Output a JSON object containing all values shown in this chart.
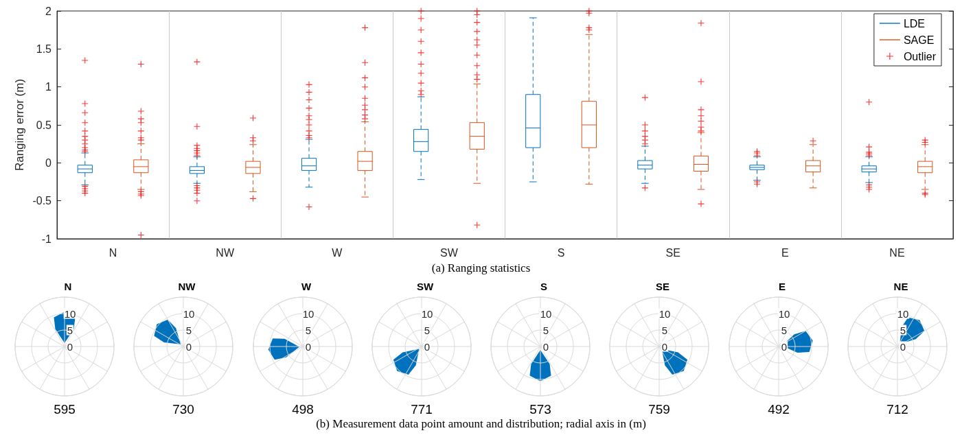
{
  "chart_data": [
    {
      "type": "box",
      "categories": [
        "N",
        "NW",
        "W",
        "SW",
        "S",
        "SE",
        "E",
        "NE"
      ],
      "ylabel": "Ranging error (m)",
      "ylim": [
        -1,
        2
      ],
      "yticks": [
        -1,
        -0.5,
        0,
        0.5,
        1,
        1.5,
        2
      ],
      "grid": "x",
      "legend": "top right",
      "marker": "cross",
      "annotations": [
        "(a) Ranging statistics"
      ],
      "series": [
        {
          "name": "LDE",
          "color": "#0072bd",
          "boxes": [
            {
              "low": -0.29,
              "q1": -0.13,
              "median": -0.08,
              "q3": -0.03,
              "high": 0.13
            },
            {
              "low": -0.27,
              "q1": -0.14,
              "median": -0.1,
              "q3": -0.05,
              "high": 0.08
            },
            {
              "low": -0.32,
              "q1": -0.1,
              "median": -0.04,
              "q3": 0.06,
              "high": 0.31
            },
            {
              "low": -0.22,
              "q1": 0.15,
              "median": 0.28,
              "q3": 0.44,
              "high": 0.87
            },
            {
              "low": -0.25,
              "q1": 0.2,
              "median": 0.46,
              "q3": 0.9,
              "high": 1.91
            },
            {
              "low": -0.27,
              "q1": -0.08,
              "median": -0.03,
              "q3": 0.03,
              "high": 0.22
            },
            {
              "low": -0.23,
              "q1": -0.09,
              "median": -0.06,
              "q3": -0.03,
              "high": 0.08
            },
            {
              "low": -0.26,
              "q1": -0.12,
              "median": -0.08,
              "q3": -0.04,
              "high": 0.08
            }
          ]
        },
        {
          "name": "SAGE",
          "color": "#d95319",
          "boxes": [
            {
              "low": -0.35,
              "q1": -0.13,
              "median": -0.05,
              "q3": 0.04,
              "high": 0.25
            },
            {
              "low": -0.38,
              "q1": -0.14,
              "median": -0.06,
              "q3": 0.02,
              "high": 0.24
            },
            {
              "low": -0.45,
              "q1": -0.1,
              "median": 0.02,
              "q3": 0.15,
              "high": 0.54
            },
            {
              "low": -0.27,
              "q1": 0.18,
              "median": 0.35,
              "q3": 0.53,
              "high": 1.04
            },
            {
              "low": -0.28,
              "q1": 0.2,
              "median": 0.5,
              "q3": 0.81,
              "high": 1.69
            },
            {
              "low": -0.35,
              "q1": -0.11,
              "median": -0.02,
              "q3": 0.09,
              "high": 0.4
            },
            {
              "low": -0.33,
              "q1": -0.12,
              "median": -0.04,
              "q3": 0.03,
              "high": 0.24
            },
            {
              "low": -0.35,
              "q1": -0.13,
              "median": -0.05,
              "q3": 0.02,
              "high": 0.24
            }
          ]
        },
        {
          "name": "Outlier",
          "type": "scatter",
          "color": "#ff0000",
          "x": [
            "N",
            "N",
            "N",
            "N",
            "N",
            "N",
            "N",
            "N",
            "N",
            "N",
            "N",
            "N",
            "N",
            "N",
            "N",
            "NW",
            "NW",
            "NW",
            "NW",
            "NW",
            "NW",
            "NW",
            "NW",
            "NW",
            "NW",
            "NW",
            "NW",
            "W",
            "W",
            "W",
            "W",
            "W",
            "W",
            "W",
            "W",
            "W",
            "W",
            "W",
            "SW",
            "SW",
            "SW",
            "SW",
            "SW",
            "SW",
            "SW",
            "SW",
            "SW",
            "SW",
            "SE",
            "SE",
            "SE",
            "SE",
            "SE",
            "SE",
            "SE",
            "E",
            "E",
            "E",
            "E",
            "E",
            "NE",
            "NE",
            "NE",
            "NE",
            "NE",
            "NE",
            "NE",
            "NE"
          ],
          "values": [
            0.15,
            0.17,
            0.2,
            0.25,
            0.3,
            0.35,
            0.42,
            0.53,
            0.66,
            0.78,
            1.35,
            -0.31,
            -0.34,
            -0.37,
            -0.4,
            0.1,
            0.13,
            0.16,
            0.19,
            0.23,
            0.48,
            1.33,
            -0.3,
            -0.33,
            -0.36,
            -0.4,
            -0.5,
            0.33,
            0.36,
            0.42,
            0.5,
            0.57,
            0.62,
            0.72,
            0.83,
            0.93,
            1.03,
            -0.58,
            0.9,
            0.95,
            1.05,
            1.18,
            1.3,
            1.45,
            1.6,
            1.75,
            1.9,
            2.0,
            0.25,
            0.3,
            0.35,
            0.42,
            0.5,
            0.86,
            -0.33,
            0.1,
            0.13,
            0.15,
            -0.25,
            -0.28,
            0.1,
            0.12,
            0.14,
            0.21,
            0.8,
            -0.29,
            -0.32,
            -0.35
          ]
        },
        {
          "type": "scatter",
          "color": "#ff0000",
          "x": [
            "N",
            "N",
            "N",
            "N",
            "N",
            "N",
            "N",
            "N",
            "N",
            "N",
            "N",
            "NW",
            "NW",
            "NW",
            "NW",
            "W",
            "W",
            "W",
            "W",
            "W",
            "W",
            "W",
            "W",
            "W",
            "SW",
            "SW",
            "SW",
            "SW",
            "SW",
            "SW",
            "SW",
            "SW",
            "SW",
            "SW",
            "SW",
            "S",
            "S",
            "S",
            "S",
            "SE",
            "SE",
            "SE",
            "SE",
            "SE",
            "SE",
            "SE",
            "SE",
            "E",
            "NE",
            "NE",
            "NE",
            "NE"
          ],
          "values": [
            0.3,
            0.33,
            0.42,
            0.53,
            0.58,
            0.68,
            1.3,
            -0.38,
            -0.41,
            -0.43,
            -0.95,
            0.29,
            0.33,
            0.59,
            -0.47,
            0.58,
            0.63,
            0.7,
            0.76,
            0.85,
            1.0,
            1.12,
            1.32,
            1.78,
            1.1,
            1.16,
            1.28,
            1.42,
            1.55,
            1.62,
            1.73,
            1.85,
            1.95,
            2.0,
            -0.82,
            1.75,
            1.78,
            1.97,
            2.0,
            0.42,
            0.47,
            0.55,
            0.62,
            0.7,
            1.07,
            1.84,
            -0.54,
            0.29,
            0.27,
            0.3,
            -0.4,
            -0.42
          ]
        }
      ]
    },
    {
      "type": "other",
      "title": "N",
      "annotations": [
        "595",
        "0",
        "5",
        "10"
      ]
    },
    {
      "type": "other",
      "title": "NW",
      "annotations": [
        "730",
        "0",
        "5",
        "10"
      ]
    },
    {
      "type": "other",
      "title": "W",
      "annotations": [
        "498",
        "0",
        "5",
        "10"
      ]
    },
    {
      "type": "other",
      "title": "SW",
      "annotations": [
        "771",
        "0",
        "5",
        "10"
      ]
    },
    {
      "type": "other",
      "title": "S",
      "annotations": [
        "573",
        "0",
        "5",
        "10"
      ]
    },
    {
      "type": "other",
      "title": "SE",
      "annotations": [
        "759",
        "0",
        "5",
        "10"
      ]
    },
    {
      "type": "other",
      "title": "E",
      "annotations": [
        "492",
        "0",
        "5",
        "10"
      ]
    },
    {
      "type": "other",
      "title": "NE",
      "annotations": [
        "712",
        "0",
        "5",
        "10",
        "(b) Measurement data point amount and distribution; radial axis in (m)"
      ]
    }
  ]
}
